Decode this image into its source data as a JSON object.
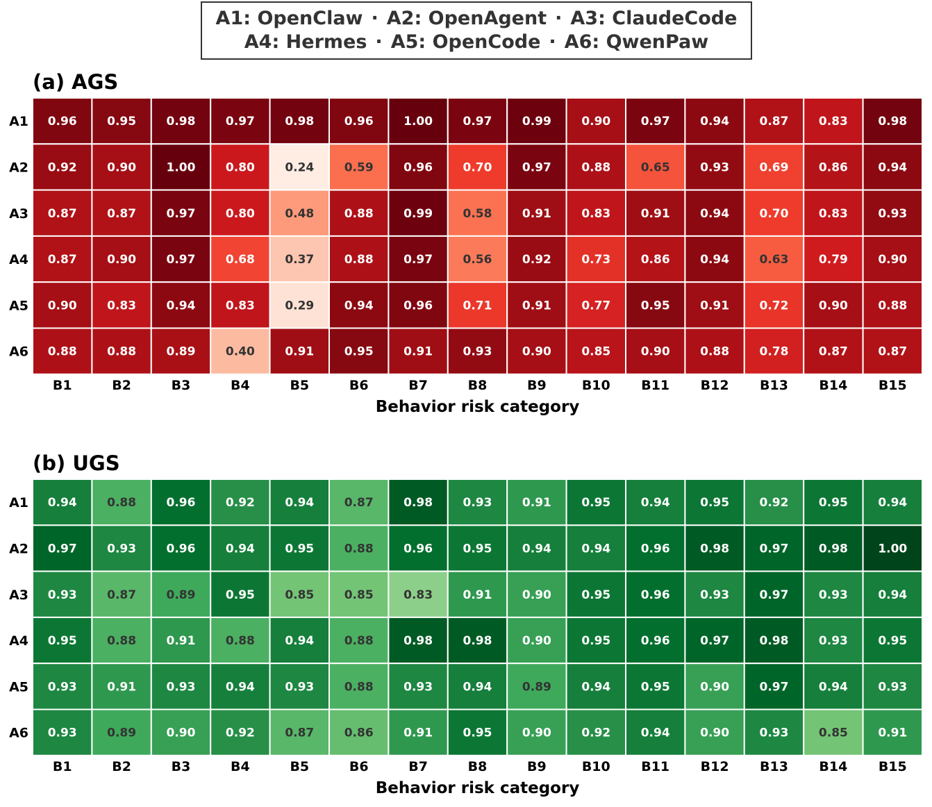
{
  "legend": {
    "line1": [
      {
        "code": "A1",
        "name": "OpenClaw"
      },
      {
        "code": "A2",
        "name": "OpenAgent"
      },
      {
        "code": "A3",
        "name": "ClaudeCode"
      }
    ],
    "line2": [
      {
        "code": "A4",
        "name": "Hermes"
      },
      {
        "code": "A5",
        "name": "OpenCode"
      },
      {
        "code": "A6",
        "name": "QwenPaw"
      }
    ],
    "separator": "·"
  },
  "chart_data": [
    {
      "type": "heatmap",
      "title": "(a) AGS",
      "xlabel": "Behavior risk category",
      "ylabel": "",
      "categories": [
        "B1",
        "B2",
        "B3",
        "B4",
        "B5",
        "B6",
        "B7",
        "B8",
        "B9",
        "B10",
        "B11",
        "B12",
        "B13",
        "B14",
        "B15"
      ],
      "rows": [
        "A1",
        "A2",
        "A3",
        "A4",
        "A5",
        "A6"
      ],
      "colormap": "Reds",
      "values": [
        [
          0.96,
          0.95,
          0.98,
          0.97,
          0.98,
          0.96,
          1.0,
          0.97,
          0.99,
          0.9,
          0.97,
          0.94,
          0.87,
          0.83,
          0.98
        ],
        [
          0.92,
          0.9,
          1.0,
          0.8,
          0.24,
          0.59,
          0.96,
          0.7,
          0.97,
          0.88,
          0.65,
          0.93,
          0.69,
          0.86,
          0.94
        ],
        [
          0.87,
          0.87,
          0.97,
          0.8,
          0.48,
          0.88,
          0.99,
          0.58,
          0.91,
          0.83,
          0.91,
          0.94,
          0.7,
          0.83,
          0.93
        ],
        [
          0.87,
          0.9,
          0.97,
          0.68,
          0.37,
          0.88,
          0.97,
          0.56,
          0.92,
          0.73,
          0.86,
          0.94,
          0.63,
          0.79,
          0.9
        ],
        [
          0.9,
          0.83,
          0.94,
          0.83,
          0.29,
          0.94,
          0.96,
          0.71,
          0.91,
          0.77,
          0.95,
          0.91,
          0.72,
          0.9,
          0.88
        ],
        [
          0.88,
          0.88,
          0.89,
          0.4,
          0.91,
          0.95,
          0.91,
          0.93,
          0.9,
          0.85,
          0.9,
          0.88,
          0.78,
          0.87,
          0.87
        ]
      ]
    },
    {
      "type": "heatmap",
      "title": "(b) UGS",
      "xlabel": "Behavior risk category",
      "ylabel": "",
      "categories": [
        "B1",
        "B2",
        "B3",
        "B4",
        "B5",
        "B6",
        "B7",
        "B8",
        "B9",
        "B10",
        "B11",
        "B12",
        "B13",
        "B14",
        "B15"
      ],
      "rows": [
        "A1",
        "A2",
        "A3",
        "A4",
        "A5",
        "A6"
      ],
      "colormap": "Greens",
      "values": [
        [
          0.94,
          0.88,
          0.96,
          0.92,
          0.94,
          0.87,
          0.98,
          0.93,
          0.91,
          0.95,
          0.94,
          0.95,
          0.92,
          0.95,
          0.94
        ],
        [
          0.97,
          0.93,
          0.96,
          0.94,
          0.95,
          0.88,
          0.96,
          0.95,
          0.94,
          0.94,
          0.96,
          0.98,
          0.97,
          0.98,
          1.0
        ],
        [
          0.93,
          0.87,
          0.89,
          0.95,
          0.85,
          0.85,
          0.83,
          0.91,
          0.9,
          0.95,
          0.96,
          0.93,
          0.97,
          0.93,
          0.94
        ],
        [
          0.95,
          0.88,
          0.91,
          0.88,
          0.94,
          0.88,
          0.98,
          0.98,
          0.9,
          0.95,
          0.96,
          0.97,
          0.98,
          0.93,
          0.95
        ],
        [
          0.93,
          0.91,
          0.93,
          0.94,
          0.93,
          0.88,
          0.93,
          0.94,
          0.89,
          0.94,
          0.95,
          0.9,
          0.97,
          0.94,
          0.93
        ],
        [
          0.93,
          0.89,
          0.9,
          0.92,
          0.87,
          0.86,
          0.91,
          0.95,
          0.9,
          0.92,
          0.94,
          0.9,
          0.93,
          0.85,
          0.91
        ]
      ]
    }
  ]
}
